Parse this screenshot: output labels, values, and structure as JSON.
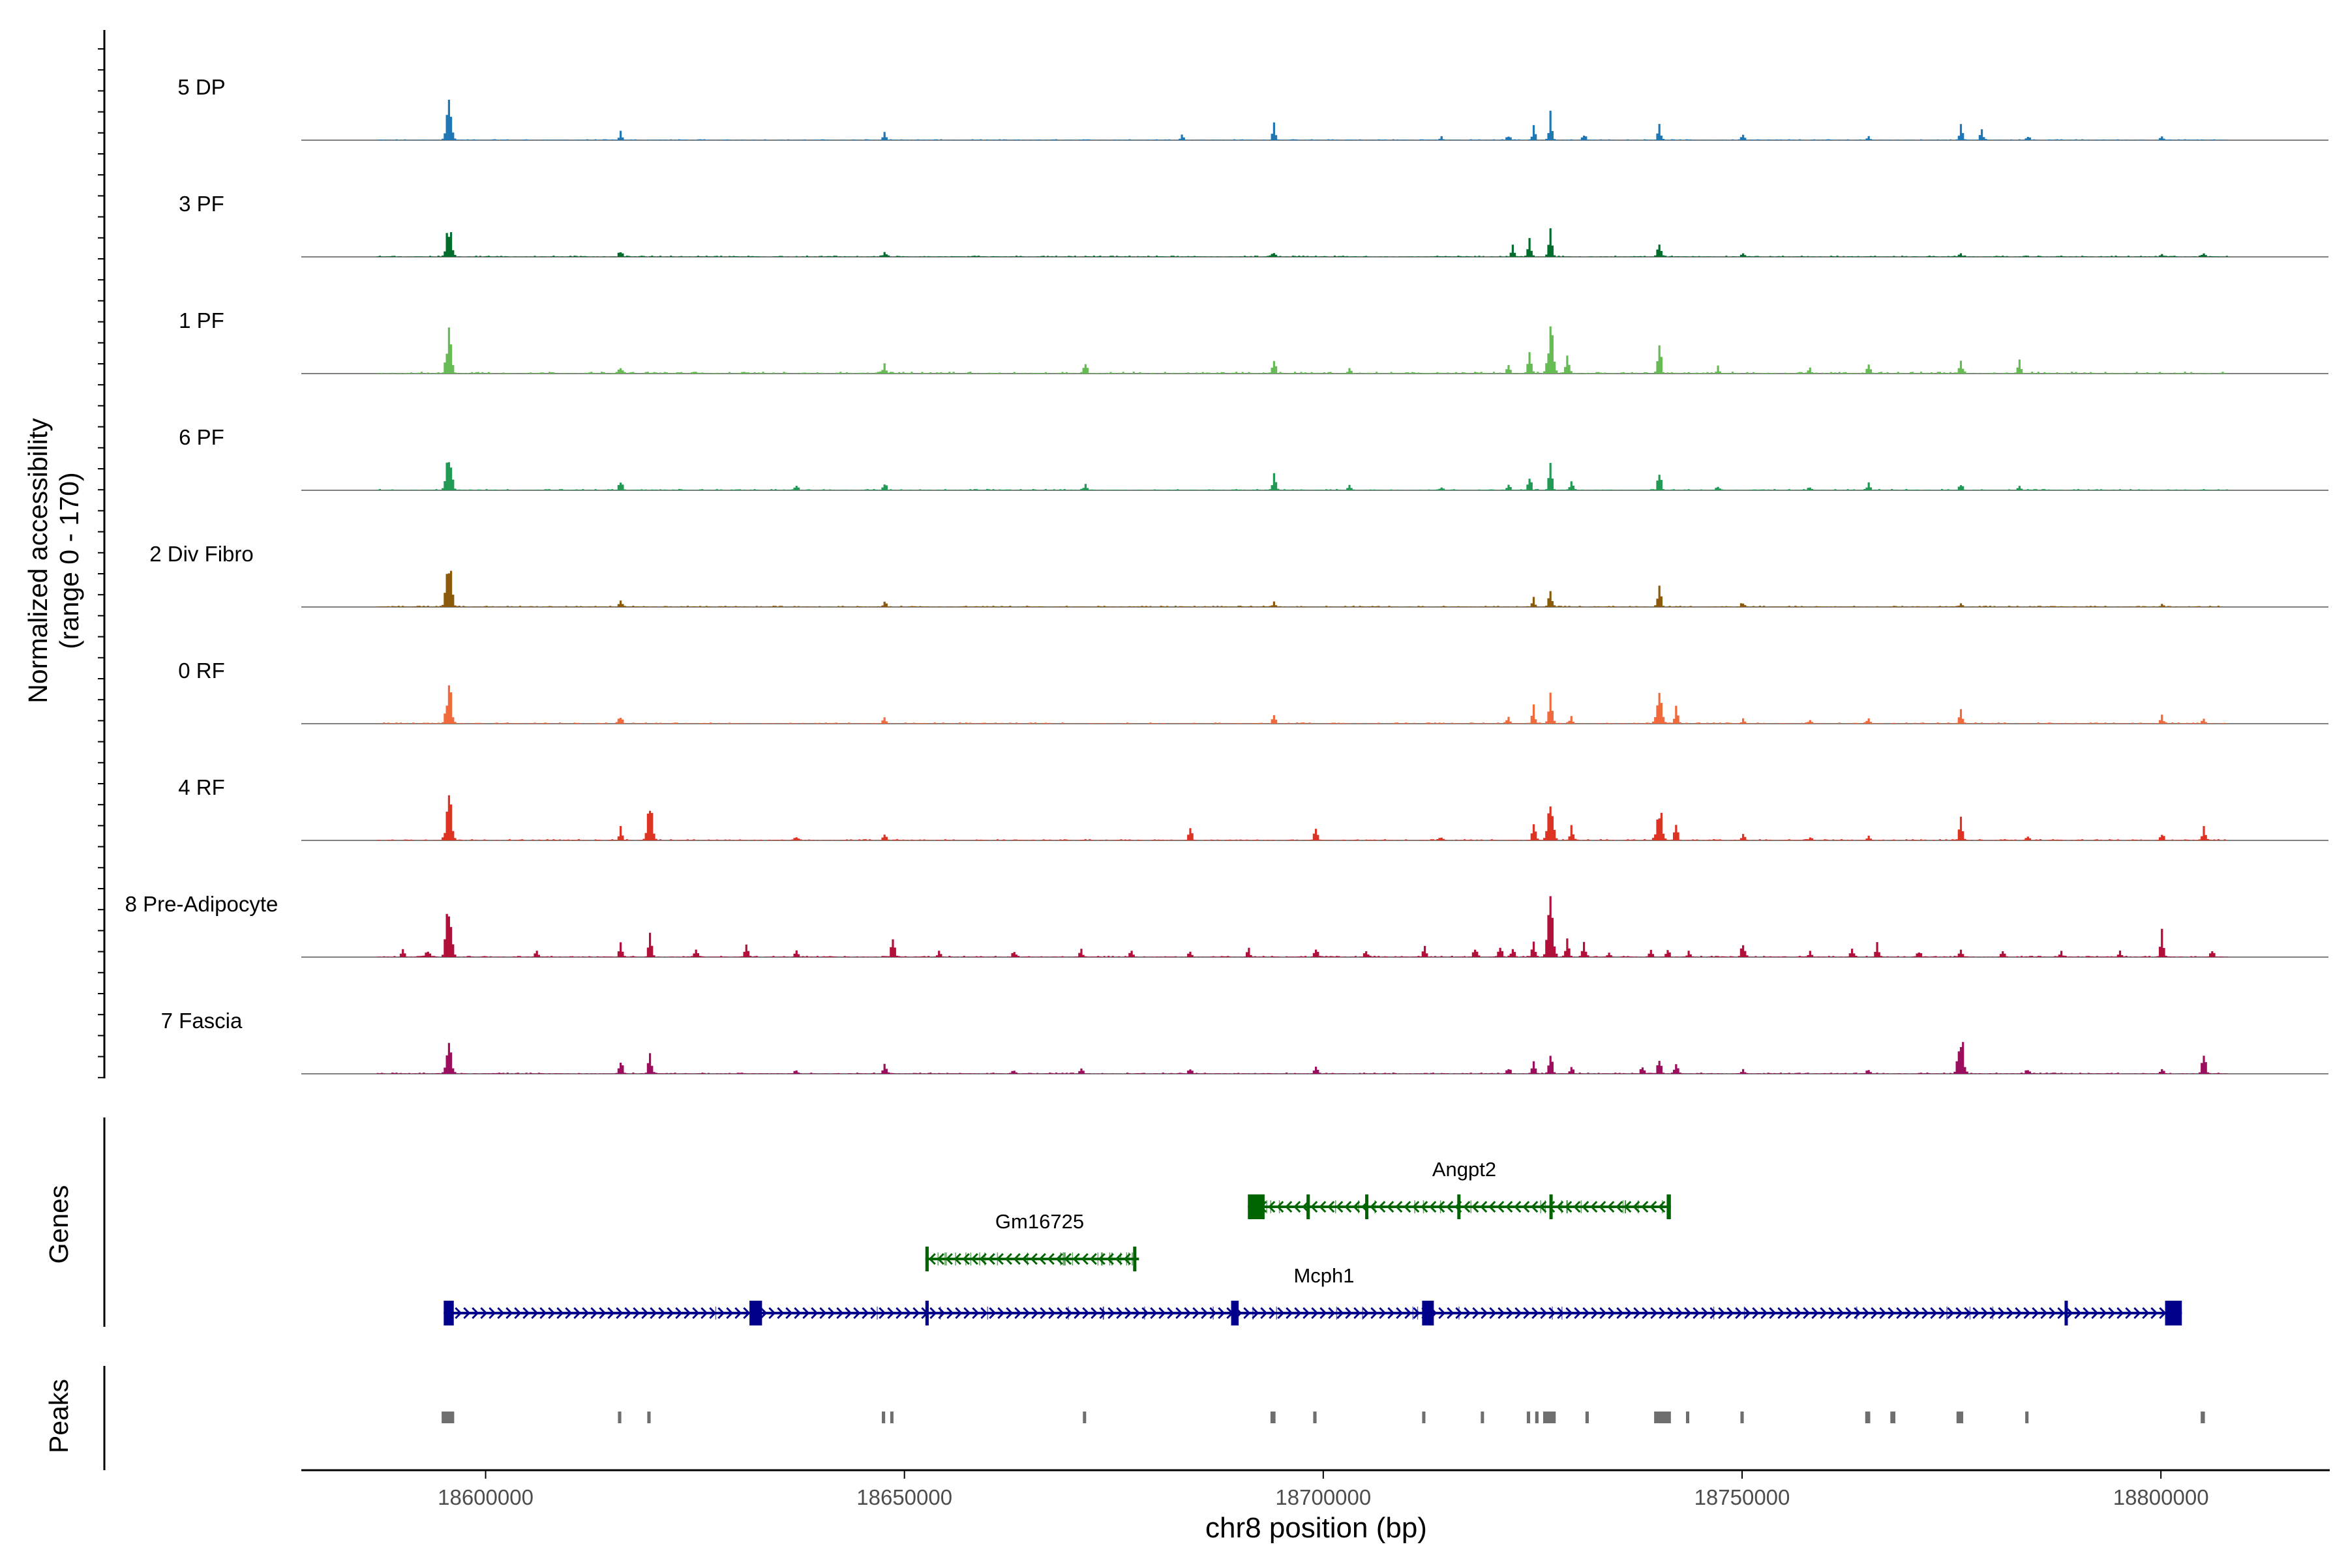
{
  "chart_data": {
    "type": "area",
    "title": "",
    "xlabel": "chr8 position (bp)",
    "ylabel": "Normalized accessibility\n(range 0 - 170)",
    "ylabel_lines": [
      "Normalized accessibility",
      "(range 0 - 170)"
    ],
    "yrange": [
      0,
      170
    ],
    "xlim": [
      18578000,
      18820000
    ],
    "x_ticks": [
      18600000,
      18650000,
      18700000,
      18750000,
      18800000
    ],
    "x_tick_labels": [
      "18600000",
      "18650000",
      "18700000",
      "18750000",
      "18800000"
    ],
    "panel_labels": {
      "genes": "Genes",
      "peaks": "Peaks"
    },
    "series": [
      {
        "name": "5 DP",
        "color": "#1f78b4",
        "peaks": [
          [
            18595500,
            75
          ],
          [
            18616000,
            14
          ],
          [
            18647500,
            16
          ],
          [
            18683000,
            10
          ],
          [
            18694000,
            34
          ],
          [
            18714000,
            6
          ],
          [
            18722000,
            10
          ],
          [
            18725000,
            24
          ],
          [
            18727000,
            48
          ],
          [
            18731000,
            12
          ],
          [
            18740000,
            32
          ],
          [
            18750000,
            10
          ],
          [
            18765000,
            6
          ],
          [
            18776000,
            26
          ],
          [
            18778500,
            20
          ],
          [
            18784000,
            10
          ],
          [
            18800000,
            8
          ]
        ],
        "noise": 1.5
      },
      {
        "name": "3 PF",
        "color": "#006d2c",
        "peaks": [
          [
            18595500,
            65
          ],
          [
            18616000,
            12
          ],
          [
            18647500,
            8
          ],
          [
            18694000,
            12
          ],
          [
            18722500,
            18
          ],
          [
            18724500,
            30
          ],
          [
            18727000,
            55
          ],
          [
            18740000,
            30
          ],
          [
            18750000,
            8
          ],
          [
            18776000,
            6
          ],
          [
            18800000,
            4
          ],
          [
            18805000,
            6
          ]
        ],
        "noise": 2.0
      },
      {
        "name": "1 PF",
        "color": "#66bb55",
        "peaks": [
          [
            18595500,
            75
          ],
          [
            18616000,
            16
          ],
          [
            18647500,
            20
          ],
          [
            18671500,
            24
          ],
          [
            18694000,
            26
          ],
          [
            18703000,
            8
          ],
          [
            18722000,
            18
          ],
          [
            18724500,
            40
          ],
          [
            18727000,
            85
          ],
          [
            18729000,
            30
          ],
          [
            18740000,
            56
          ],
          [
            18747000,
            12
          ],
          [
            18758000,
            10
          ],
          [
            18765000,
            20
          ],
          [
            18776000,
            20
          ],
          [
            18783000,
            28
          ]
        ],
        "noise": 3.0
      },
      {
        "name": "6 PF",
        "color": "#229955",
        "peaks": [
          [
            18595500,
            70
          ],
          [
            18616000,
            20
          ],
          [
            18637000,
            8
          ],
          [
            18647500,
            16
          ],
          [
            18671500,
            14
          ],
          [
            18694000,
            30
          ],
          [
            18703000,
            8
          ],
          [
            18714000,
            8
          ],
          [
            18722000,
            12
          ],
          [
            18724500,
            32
          ],
          [
            18727000,
            44
          ],
          [
            18729500,
            16
          ],
          [
            18740000,
            48
          ],
          [
            18747000,
            8
          ],
          [
            18758000,
            6
          ],
          [
            18765000,
            12
          ],
          [
            18776000,
            14
          ],
          [
            18783000,
            10
          ]
        ],
        "noise": 2.0
      },
      {
        "name": "2 Div Fibro",
        "color": "#8b5a0b",
        "peaks": [
          [
            18595500,
            95
          ],
          [
            18616000,
            14
          ],
          [
            18647500,
            8
          ],
          [
            18694000,
            8
          ],
          [
            18725000,
            16
          ],
          [
            18727000,
            42
          ],
          [
            18740000,
            38
          ],
          [
            18750000,
            10
          ],
          [
            18776000,
            6
          ],
          [
            18800000,
            4
          ]
        ],
        "noise": 2.0
      },
      {
        "name": "0 RF",
        "color": "#f06a3c",
        "peaks": [
          [
            18595500,
            70
          ],
          [
            18616000,
            16
          ],
          [
            18647500,
            10
          ],
          [
            18694000,
            18
          ],
          [
            18722000,
            14
          ],
          [
            18725000,
            30
          ],
          [
            18727000,
            60
          ],
          [
            18729500,
            12
          ],
          [
            18740000,
            65
          ],
          [
            18742000,
            30
          ],
          [
            18750000,
            10
          ],
          [
            18758000,
            8
          ],
          [
            18765000,
            8
          ],
          [
            18776000,
            28
          ],
          [
            18800000,
            14
          ],
          [
            18805000,
            10
          ]
        ],
        "noise": 2.0
      },
      {
        "name": "4 RF",
        "color": "#dd3322",
        "peaks": [
          [
            18595500,
            85
          ],
          [
            18616000,
            24
          ],
          [
            18619500,
            70
          ],
          [
            18637000,
            8
          ],
          [
            18647500,
            10
          ],
          [
            18684000,
            26
          ],
          [
            18699000,
            22
          ],
          [
            18714000,
            8
          ],
          [
            18725000,
            30
          ],
          [
            18727000,
            80
          ],
          [
            18729500,
            28
          ],
          [
            18740000,
            70
          ],
          [
            18742000,
            30
          ],
          [
            18750000,
            14
          ],
          [
            18758000,
            8
          ],
          [
            18765000,
            6
          ],
          [
            18776000,
            42
          ],
          [
            18784000,
            8
          ],
          [
            18800000,
            14
          ],
          [
            18805000,
            24
          ]
        ],
        "noise": 2.0
      },
      {
        "name": "8 Pre-Adipocyte",
        "color": "#b0103a",
        "peaks": [
          [
            18590000,
            12
          ],
          [
            18593000,
            16
          ],
          [
            18595500,
            120
          ],
          [
            18606000,
            14
          ],
          [
            18616000,
            24
          ],
          [
            18619500,
            50
          ],
          [
            18625000,
            20
          ],
          [
            18631000,
            22
          ],
          [
            18637000,
            16
          ],
          [
            18648500,
            36
          ],
          [
            18654000,
            10
          ],
          [
            18663000,
            10
          ],
          [
            18671000,
            14
          ],
          [
            18677000,
            16
          ],
          [
            18684000,
            10
          ],
          [
            18691000,
            14
          ],
          [
            18699000,
            24
          ],
          [
            18705000,
            14
          ],
          [
            18712000,
            18
          ],
          [
            18718000,
            22
          ],
          [
            18721000,
            26
          ],
          [
            18722500,
            20
          ],
          [
            18725000,
            36
          ],
          [
            18727000,
            130
          ],
          [
            18729000,
            30
          ],
          [
            18731000,
            40
          ],
          [
            18734000,
            10
          ],
          [
            18739000,
            12
          ],
          [
            18741000,
            18
          ],
          [
            18743500,
            10
          ],
          [
            18750000,
            38
          ],
          [
            18758000,
            10
          ],
          [
            18763000,
            18
          ],
          [
            18766000,
            26
          ],
          [
            18771000,
            14
          ],
          [
            18776000,
            16
          ],
          [
            18781000,
            12
          ],
          [
            18788000,
            10
          ],
          [
            18795000,
            10
          ],
          [
            18800000,
            55
          ],
          [
            18806000,
            12
          ]
        ],
        "noise": 2.0
      },
      {
        "name": "7 Fascia",
        "color": "#9c0f5f",
        "peaks": [
          [
            18595500,
            70
          ],
          [
            18616000,
            26
          ],
          [
            18619500,
            38
          ],
          [
            18637000,
            8
          ],
          [
            18647500,
            18
          ],
          [
            18663000,
            8
          ],
          [
            18671000,
            10
          ],
          [
            18684000,
            12
          ],
          [
            18699000,
            14
          ],
          [
            18722000,
            14
          ],
          [
            18725000,
            20
          ],
          [
            18727000,
            50
          ],
          [
            18729500,
            14
          ],
          [
            18738000,
            18
          ],
          [
            18740000,
            30
          ],
          [
            18742000,
            18
          ],
          [
            18750000,
            8
          ],
          [
            18765000,
            10
          ],
          [
            18776000,
            88
          ],
          [
            18784000,
            10
          ],
          [
            18800000,
            10
          ],
          [
            18805000,
            54
          ]
        ],
        "noise": 2.0
      }
    ],
    "genes": [
      {
        "name": "Angpt2",
        "color": "#006400",
        "strand": "-",
        "start": 18691000,
        "end": 18741500,
        "exons": [
          [
            18691000,
            18693000
          ],
          [
            18698000,
            18698400
          ],
          [
            18705000,
            18705300
          ],
          [
            18716000,
            18716300
          ],
          [
            18727000,
            18727300
          ],
          [
            18741000,
            18741500
          ]
        ]
      },
      {
        "name": "Gm16725",
        "color": "#006400",
        "strand": "-",
        "start": 18652500,
        "end": 18678000,
        "exons": [
          [
            18652500,
            18652900
          ],
          [
            18677300,
            18677600
          ]
        ]
      },
      {
        "name": "Mcph1",
        "color": "#00008b",
        "strand": "+",
        "start": 18595000,
        "end": 18802500,
        "exons": [
          [
            18595000,
            18596200
          ],
          [
            18631500,
            18633000
          ],
          [
            18652500,
            18652900
          ],
          [
            18689000,
            18689900
          ],
          [
            18711800,
            18713200
          ],
          [
            18788500,
            18788800
          ],
          [
            18800500,
            18802500
          ]
        ]
      }
    ],
    "peaks_track": [
      [
        18595500,
        1500
      ],
      [
        18616000,
        400
      ],
      [
        18619500,
        400
      ],
      [
        18647500,
        400
      ],
      [
        18648500,
        300
      ],
      [
        18671500,
        200
      ],
      [
        18694000,
        600
      ],
      [
        18699000,
        400
      ],
      [
        18712000,
        300
      ],
      [
        18719000,
        300
      ],
      [
        18724500,
        400
      ],
      [
        18725500,
        400
      ],
      [
        18727000,
        1500
      ],
      [
        18731500,
        400
      ],
      [
        18740500,
        2000
      ],
      [
        18743500,
        300
      ],
      [
        18750000,
        400
      ],
      [
        18765000,
        600
      ],
      [
        18768000,
        600
      ],
      [
        18776000,
        800
      ],
      [
        18784000,
        300
      ],
      [
        18805000,
        500
      ]
    ]
  }
}
